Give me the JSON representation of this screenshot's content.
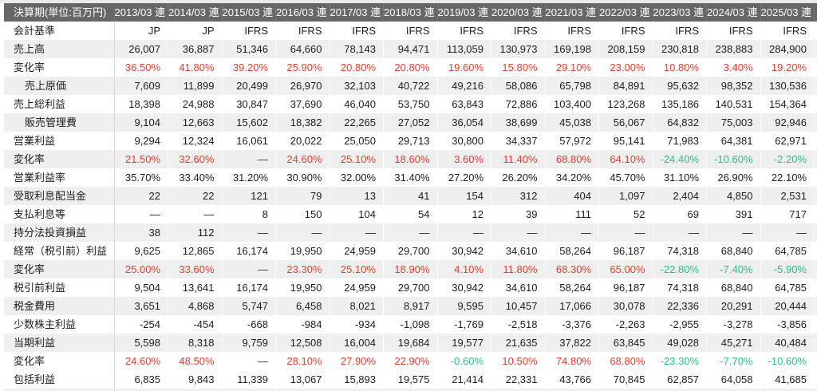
{
  "table": {
    "header": {
      "label": "決算期(単位:百万円)",
      "columns": [
        "2013/03 連",
        "2014/03 連",
        "2015/03 連",
        "2016/03 連",
        "2017/03 連",
        "2018/03 連",
        "2019/03 連",
        "2020/03 連",
        "2021/03 連",
        "2022/03 連",
        "2023/03 連",
        "2024/03 連",
        "2025/03 連"
      ],
      "truncated_column": "2"
    },
    "colors": {
      "positive_change": "#e73c2e",
      "negative_change": "#2cbd8d",
      "dash_text": "#333333",
      "header_bg": "#676767",
      "header_text": "#ffffff",
      "stripe": "#efefef",
      "body_text": "#1d1d1d"
    },
    "rows": [
      {
        "label": "会計基準",
        "indent": false,
        "shade": false,
        "type": "text",
        "values": [
          "JP",
          "JP",
          "IFRS",
          "IFRS",
          "IFRS",
          "IFRS",
          "IFRS",
          "IFRS",
          "IFRS",
          "IFRS",
          "IFRS",
          "IFRS",
          "IFRS"
        ]
      },
      {
        "label": "売上高",
        "indent": false,
        "shade": true,
        "type": "number",
        "values": [
          "26,007",
          "36,887",
          "51,346",
          "64,660",
          "78,143",
          "94,471",
          "113,059",
          "130,973",
          "169,198",
          "208,159",
          "230,818",
          "238,883",
          "284,900"
        ]
      },
      {
        "label": "変化率",
        "indent": false,
        "shade": false,
        "type": "rate",
        "values": [
          "36.50%",
          "41.80%",
          "39.20%",
          "25.90%",
          "20.80%",
          "20.80%",
          "19.60%",
          "15.80%",
          "29.10%",
          "23.00%",
          "10.80%",
          "3.40%",
          "19.20%"
        ]
      },
      {
        "label": "売上原価",
        "indent": true,
        "shade": true,
        "type": "number",
        "values": [
          "7,609",
          "11,899",
          "20,499",
          "26,970",
          "32,103",
          "40,722",
          "49,216",
          "58,086",
          "65,798",
          "84,891",
          "95,632",
          "98,352",
          "130,536"
        ]
      },
      {
        "label": "売上総利益",
        "indent": false,
        "shade": false,
        "type": "number",
        "values": [
          "18,398",
          "24,988",
          "30,847",
          "37,690",
          "46,040",
          "53,750",
          "63,843",
          "72,886",
          "103,400",
          "123,268",
          "135,186",
          "140,531",
          "154,364"
        ]
      },
      {
        "label": "販売管理費",
        "indent": true,
        "shade": true,
        "type": "number",
        "values": [
          "9,104",
          "12,663",
          "15,602",
          "18,382",
          "22,265",
          "27,052",
          "36,054",
          "38,699",
          "45,038",
          "56,067",
          "64,832",
          "75,003",
          "92,946"
        ]
      },
      {
        "label": "営業利益",
        "indent": false,
        "shade": false,
        "type": "number",
        "values": [
          "9,294",
          "12,324",
          "16,061",
          "20,022",
          "25,050",
          "29,713",
          "30,800",
          "34,337",
          "57,972",
          "95,141",
          "71,983",
          "64,381",
          "62,971"
        ]
      },
      {
        "label": "変化率",
        "indent": false,
        "shade": true,
        "type": "rate",
        "values": [
          "21.50%",
          "32.60%",
          "—",
          "24.60%",
          "25.10%",
          "18.60%",
          "3.60%",
          "11.40%",
          "68.80%",
          "64.10%",
          "-24.40%",
          "-10.60%",
          "-2.20%"
        ]
      },
      {
        "label": "営業利益率",
        "indent": false,
        "shade": false,
        "type": "number",
        "values": [
          "35.70%",
          "33.40%",
          "31.20%",
          "30.90%",
          "32.00%",
          "31.40%",
          "27.20%",
          "26.20%",
          "34.20%",
          "45.70%",
          "31.10%",
          "26.90%",
          "22.10%"
        ]
      },
      {
        "label": "受取利息配当金",
        "indent": false,
        "shade": true,
        "type": "number",
        "values": [
          "22",
          "22",
          "121",
          "79",
          "13",
          "41",
          "154",
          "312",
          "404",
          "1,097",
          "2,404",
          "4,850",
          "2,531"
        ]
      },
      {
        "label": "支払利息等",
        "indent": false,
        "shade": false,
        "type": "number",
        "values": [
          "—",
          "—",
          "8",
          "150",
          "104",
          "54",
          "12",
          "39",
          "111",
          "52",
          "69",
          "391",
          "717"
        ]
      },
      {
        "label": "持分法投資損益",
        "indent": false,
        "shade": true,
        "type": "number",
        "values": [
          "38",
          "112",
          "—",
          "—",
          "—",
          "—",
          "—",
          "—",
          "—",
          "—",
          "—",
          "—",
          "—"
        ]
      },
      {
        "label": "経常（税引前）利益",
        "indent": false,
        "shade": false,
        "type": "number",
        "values": [
          "9,625",
          "12,865",
          "16,174",
          "19,950",
          "24,959",
          "29,700",
          "30,942",
          "34,610",
          "58,264",
          "96,187",
          "74,318",
          "68,840",
          "64,785"
        ]
      },
      {
        "label": "変化率",
        "indent": false,
        "shade": true,
        "type": "rate",
        "values": [
          "25.00%",
          "33.60%",
          "—",
          "23.30%",
          "25.10%",
          "18.90%",
          "4.10%",
          "11.80%",
          "68.30%",
          "65.00%",
          "-22.80%",
          "-7.40%",
          "-5.90%"
        ]
      },
      {
        "label": "税引前利益",
        "indent": false,
        "shade": false,
        "type": "number",
        "values": [
          "9,504",
          "13,641",
          "16,174",
          "19,950",
          "24,959",
          "29,700",
          "30,942",
          "34,610",
          "58,264",
          "96,187",
          "74,318",
          "68,840",
          "64,785"
        ]
      },
      {
        "label": "税金費用",
        "indent": false,
        "shade": true,
        "type": "number",
        "values": [
          "3,651",
          "4,868",
          "5,747",
          "6,458",
          "8,021",
          "8,917",
          "9,595",
          "10,457",
          "17,066",
          "30,078",
          "22,336",
          "20,291",
          "20,444"
        ]
      },
      {
        "label": "少数株主利益",
        "indent": false,
        "shade": false,
        "type": "number",
        "values": [
          "-254",
          "-454",
          "-668",
          "-984",
          "-934",
          "-1,098",
          "-1,769",
          "-2,518",
          "-3,376",
          "-2,263",
          "-2,955",
          "-3,278",
          "-3,856"
        ]
      },
      {
        "label": "当期利益",
        "indent": false,
        "shade": true,
        "type": "number",
        "values": [
          "5,598",
          "8,318",
          "9,759",
          "12,508",
          "16,004",
          "19,684",
          "19,577",
          "21,635",
          "37,822",
          "63,845",
          "49,028",
          "45,271",
          "40,484"
        ]
      },
      {
        "label": "変化率",
        "indent": false,
        "shade": false,
        "type": "rate",
        "values": [
          "24.60%",
          "48.50%",
          "—",
          "28.10%",
          "27.90%",
          "22.90%",
          "-0.60%",
          "10.50%",
          "74.80%",
          "68.80%",
          "-23.30%",
          "-7.70%",
          "-10.60%"
        ]
      },
      {
        "label": "包括利益",
        "indent": false,
        "shade": false,
        "type": "number",
        "values": [
          "6,835",
          "9,843",
          "11,339",
          "13,067",
          "15,893",
          "19,575",
          "21,414",
          "22,331",
          "43,766",
          "70,845",
          "62,857",
          "64,058",
          "41,685"
        ]
      }
    ]
  }
}
